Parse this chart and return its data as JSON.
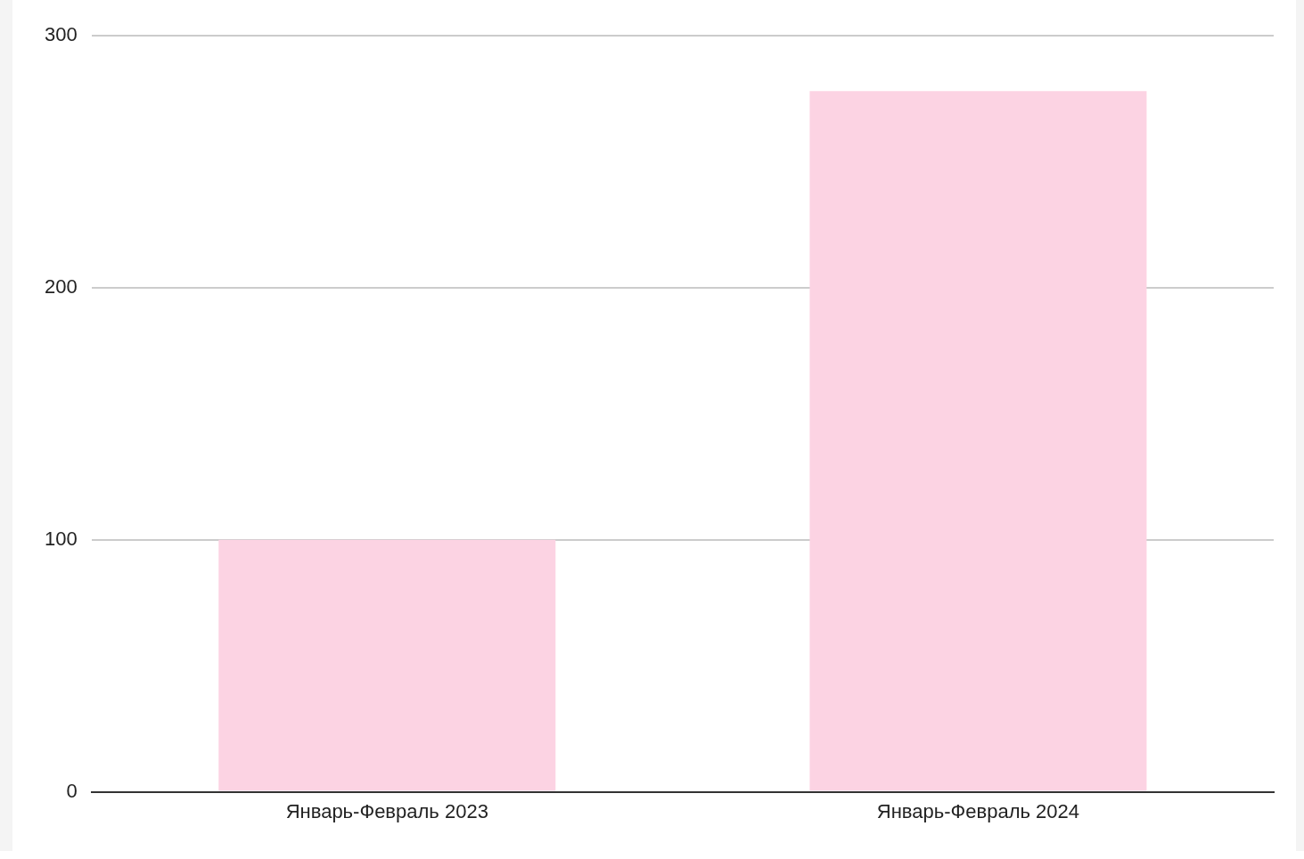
{
  "chart_data": {
    "type": "bar",
    "categories": [
      "Январь-Февраль 2023",
      "Январь-Февраль 2024"
    ],
    "values": [
      100,
      278
    ],
    "color": "#fcd3e3",
    "ylim": [
      0,
      300
    ],
    "yticks": [
      0,
      100,
      200,
      300
    ],
    "grid": "y",
    "legend": false
  }
}
